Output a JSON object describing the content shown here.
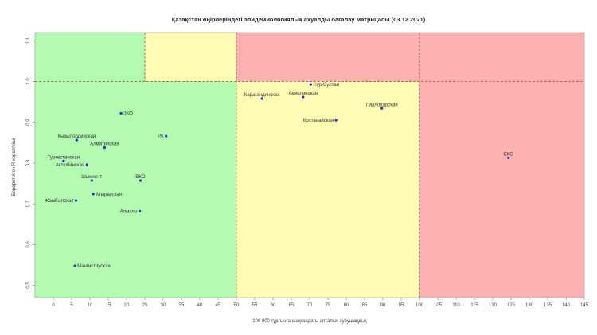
{
  "chart_data": {
    "type": "scatter",
    "title": "Қазақстан өңірлеріндегі эпидемиологиялық ахуалды бағалау матрицасы  (03.12.2021)",
    "xlabel": "100 000 тұрғынға шаққандағы апталық аурушаңдық",
    "ylabel": "Береретілген R көрсеткіші",
    "xlim": [
      -5,
      145
    ],
    "ylim": [
      0.47,
      1.12
    ],
    "x_ticks": [
      0,
      5,
      10,
      15,
      20,
      25,
      30,
      35,
      40,
      45,
      50,
      55,
      60,
      65,
      70,
      75,
      80,
      85,
      90,
      95,
      100,
      105,
      110,
      115,
      120,
      125,
      130,
      135,
      140,
      145
    ],
    "y_ticks": [
      0.5,
      0.6,
      0.7,
      0.8,
      0.9,
      1.0,
      1.1
    ],
    "threshold_lines": {
      "x": [
        25,
        50,
        100
      ],
      "y": 1.0
    },
    "zones": [
      {
        "name": "green",
        "color": "#b2fbb0",
        "x": [
          -5,
          50
        ],
        "y": [
          0.47,
          1.0
        ]
      },
      {
        "name": "green-upper",
        "color": "#b2fbb0",
        "x": [
          -5,
          25
        ],
        "y": [
          1.0,
          1.12
        ]
      },
      {
        "name": "yellow-upper",
        "color": "#fefdb3",
        "x": [
          25,
          50
        ],
        "y": [
          1.0,
          1.12
        ]
      },
      {
        "name": "yellow",
        "color": "#fefdb3",
        "x": [
          50,
          100
        ],
        "y": [
          0.47,
          1.0
        ]
      },
      {
        "name": "red",
        "color": "#feb1b1",
        "x": [
          100,
          145
        ],
        "y": [
          0.47,
          1.0
        ]
      },
      {
        "name": "red-upper",
        "color": "#feb1b1",
        "x": [
          50,
          145
        ],
        "y": [
          1.0,
          1.12
        ]
      }
    ],
    "points": [
      {
        "label": "Нур-Султан",
        "x": 70.3,
        "y": 0.993,
        "anchor": "start"
      },
      {
        "label": "Акмолинская",
        "x": 68.2,
        "y": 0.962,
        "anchor": "middle"
      },
      {
        "label": "Карагандинская",
        "x": 57.0,
        "y": 0.958,
        "anchor": "middle"
      },
      {
        "label": "Павлодарская",
        "x": 89.7,
        "y": 0.934,
        "anchor": "middle"
      },
      {
        "label": "Костанайская",
        "x": 77.2,
        "y": 0.905,
        "anchor": "end"
      },
      {
        "label": "СКО",
        "x": 124.3,
        "y": 0.813,
        "anchor": "middle"
      },
      {
        "label": "ЗКО",
        "x": 18.5,
        "y": 0.922,
        "anchor": "start"
      },
      {
        "label": "РК",
        "x": 30.8,
        "y": 0.866,
        "anchor": "end"
      },
      {
        "label": "Кызылординская",
        "x": 6.4,
        "y": 0.856,
        "anchor": "middle"
      },
      {
        "label": "Алматинская",
        "x": 14.0,
        "y": 0.838,
        "anchor": "middle"
      },
      {
        "label": "Туркестанская",
        "x": 2.8,
        "y": 0.805,
        "anchor": "middle"
      },
      {
        "label": "Актюбинская",
        "x": 9.2,
        "y": 0.796,
        "anchor": "end"
      },
      {
        "label": "Шымкент",
        "x": 10.5,
        "y": 0.757,
        "anchor": "middle"
      },
      {
        "label": "ВКО",
        "x": 23.8,
        "y": 0.757,
        "anchor": "middle"
      },
      {
        "label": "Атырауская",
        "x": 10.9,
        "y": 0.724,
        "anchor": "start"
      },
      {
        "label": "Жамбылская",
        "x": 6.2,
        "y": 0.708,
        "anchor": "end"
      },
      {
        "label": "Алматы",
        "x": 23.6,
        "y": 0.682,
        "anchor": "end"
      },
      {
        "label": "Мангистауская",
        "x": 5.9,
        "y": 0.548,
        "anchor": "start"
      }
    ],
    "marker_color": "#1f2fd6"
  }
}
